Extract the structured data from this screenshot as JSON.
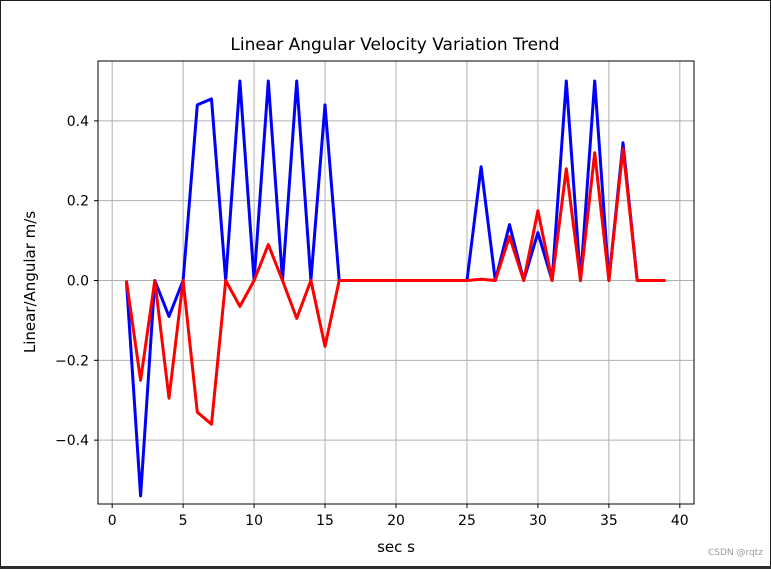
{
  "watermark": "CSDN @rqtz",
  "chart_data": {
    "type": "line",
    "title": "Linear Angular Velocity Variation Trend",
    "xlabel": "sec s",
    "ylabel": "Linear/Angular m/s",
    "xlim": [
      -1,
      41
    ],
    "ylim": [
      -0.56,
      0.55
    ],
    "xticks": [
      0,
      5,
      10,
      15,
      20,
      25,
      30,
      35,
      40
    ],
    "yticks": [
      -0.4,
      -0.2,
      0.0,
      0.2,
      0.4
    ],
    "ytick_labels": [
      "−0.4",
      "−0.2",
      "0.0",
      "0.2",
      "0.4"
    ],
    "grid": true,
    "x": [
      1,
      2,
      3,
      4,
      5,
      6,
      7,
      8,
      9,
      10,
      11,
      12,
      13,
      14,
      15,
      16,
      17,
      18,
      19,
      20,
      21,
      22,
      23,
      24,
      25,
      26,
      27,
      28,
      29,
      30,
      31,
      32,
      33,
      34,
      35,
      36,
      37,
      38,
      39
    ],
    "series": [
      {
        "color": "#0000ff",
        "values": [
          0,
          -0.54,
          0,
          -0.09,
          0,
          0.44,
          0.455,
          0,
          0.5,
          0,
          0.5,
          0,
          0.5,
          0,
          0.44,
          0,
          0,
          0,
          0,
          0,
          0,
          0,
          0,
          0,
          0,
          0.285,
          0,
          0.14,
          0,
          0.12,
          0,
          0.5,
          0,
          0.5,
          0,
          0.345,
          0,
          0,
          0
        ]
      },
      {
        "color": "#ff0000",
        "values": [
          0,
          -0.25,
          0,
          -0.295,
          0,
          -0.33,
          -0.36,
          0,
          -0.065,
          0,
          0.09,
          0,
          -0.095,
          0,
          -0.165,
          0,
          0,
          0,
          0,
          0,
          0,
          0,
          0,
          0,
          0,
          0.003,
          0,
          0.11,
          0,
          0.175,
          0,
          0.28,
          0,
          0.32,
          0,
          0.33,
          0,
          0,
          0
        ]
      }
    ]
  }
}
